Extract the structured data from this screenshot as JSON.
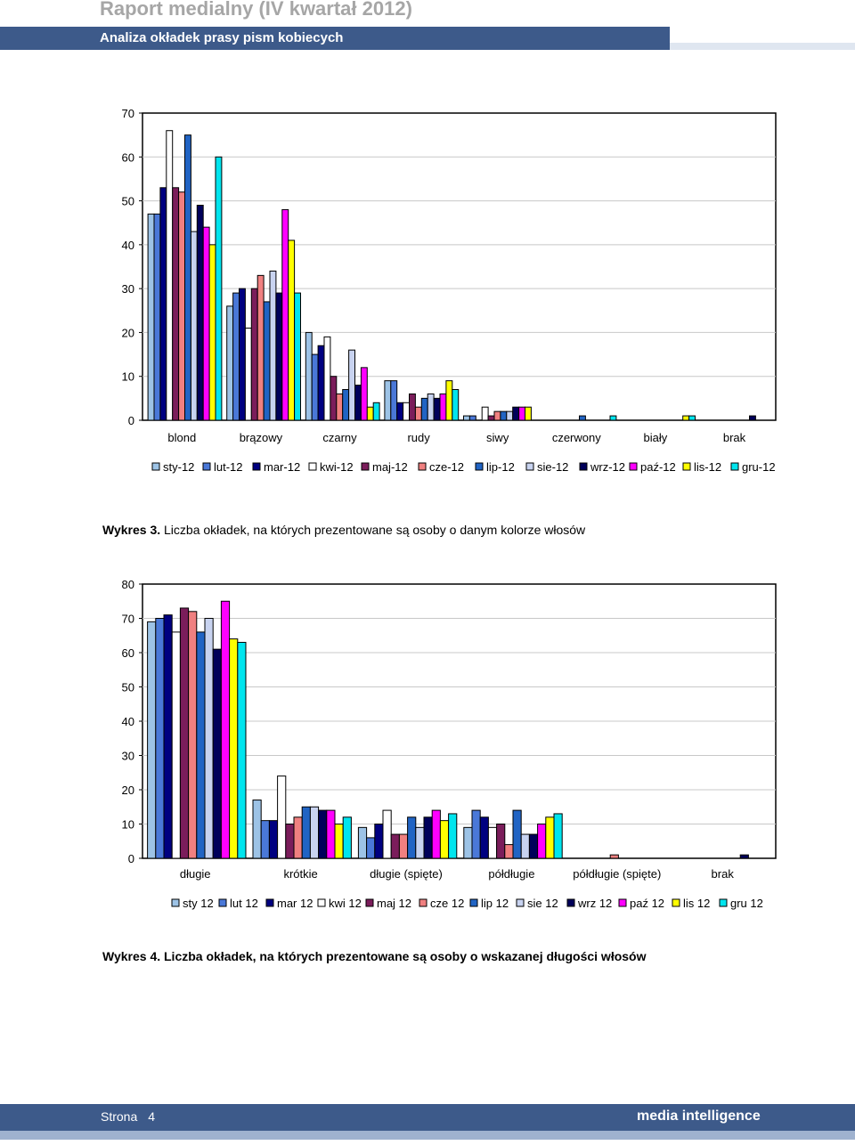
{
  "header": {
    "title": "Raport medialny (IV kwartał 2012)",
    "subtitle": "Analiza okładek prasy pism kobiecych"
  },
  "series_colors": [
    "#9dc3e6",
    "#4a78d8",
    "#000080",
    "#ffffff",
    "#7b1d5b",
    "#f08080",
    "#2164c4",
    "#c8d3f0",
    "#00005a",
    "#ff00ff",
    "#ffff00",
    "#00e5ee"
  ],
  "charts": [
    {
      "caption_bold": "Wykres 3.",
      "caption_text": " Liczba okładek, na których prezentowane są osoby o danym kolorze włosów",
      "chart_data": {
        "type": "bar",
        "categories": [
          "blond",
          "brązowy",
          "czarny",
          "rudy",
          "siwy",
          "czerwony",
          "biały",
          "brak"
        ],
        "ylim": [
          0,
          70
        ],
        "yticks": [
          "0",
          "10",
          "20",
          "30",
          "40",
          "50",
          "60",
          "70"
        ],
        "series": [
          {
            "name": "sty-12",
            "values": [
              47,
              26,
              20,
              9,
              1,
              0,
              0,
              0
            ]
          },
          {
            "name": "lut-12",
            "values": [
              47,
              29,
              15,
              9,
              1,
              0,
              0,
              0
            ]
          },
          {
            "name": "mar-12",
            "values": [
              53,
              30,
              17,
              4,
              0,
              0,
              0,
              0
            ]
          },
          {
            "name": "kwi-12",
            "values": [
              66,
              21,
              19,
              4,
              3,
              0,
              0,
              0
            ]
          },
          {
            "name": "maj-12",
            "values": [
              53,
              30,
              10,
              6,
              1,
              0,
              0,
              0
            ]
          },
          {
            "name": "cze-12",
            "values": [
              52,
              33,
              6,
              3,
              2,
              0,
              0,
              0
            ]
          },
          {
            "name": "lip-12",
            "values": [
              65,
              27,
              7,
              5,
              2,
              1,
              0,
              0
            ]
          },
          {
            "name": "sie-12",
            "values": [
              43,
              34,
              16,
              6,
              2,
              0,
              0,
              0
            ]
          },
          {
            "name": "wrz-12",
            "values": [
              49,
              29,
              8,
              5,
              3,
              0,
              0,
              1
            ]
          },
          {
            "name": "paź-12",
            "values": [
              44,
              48,
              12,
              6,
              3,
              0,
              0,
              0
            ]
          },
          {
            "name": "lis-12",
            "values": [
              40,
              41,
              3,
              9,
              3,
              0,
              1,
              0
            ]
          },
          {
            "name": "gru-12",
            "values": [
              60,
              29,
              4,
              7,
              0,
              1,
              1,
              0
            ]
          }
        ]
      }
    },
    {
      "caption_bold": "Wykres 4. Liczba okładek, na których prezentowane są osoby o wskazanej długości włosów",
      "caption_text": "",
      "chart_data": {
        "type": "bar",
        "categories": [
          "długie",
          "krótkie",
          "długie (spięte)",
          "półdługie",
          "półdługie (spięte)",
          "brak"
        ],
        "ylim": [
          0,
          80
        ],
        "yticks": [
          "0",
          "10",
          "20",
          "30",
          "40",
          "50",
          "60",
          "70",
          "80"
        ],
        "series": [
          {
            "name": "sty 12",
            "values": [
              69,
              17,
              9,
              9,
              0,
              0
            ]
          },
          {
            "name": "lut 12",
            "values": [
              70,
              11,
              6,
              14,
              0,
              0
            ]
          },
          {
            "name": "mar 12",
            "values": [
              71,
              11,
              10,
              12,
              0,
              0
            ]
          },
          {
            "name": "kwi 12",
            "values": [
              66,
              24,
              14,
              9,
              0,
              0
            ]
          },
          {
            "name": "maj 12",
            "values": [
              73,
              10,
              7,
              10,
              0,
              0
            ]
          },
          {
            "name": "cze 12",
            "values": [
              72,
              12,
              7,
              4,
              1,
              0
            ]
          },
          {
            "name": "lip 12",
            "values": [
              66,
              15,
              12,
              14,
              0,
              0
            ]
          },
          {
            "name": "sie 12",
            "values": [
              70,
              15,
              9,
              7,
              0,
              0
            ]
          },
          {
            "name": "wrz 12",
            "values": [
              61,
              14,
              12,
              7,
              0,
              1
            ]
          },
          {
            "name": "paź 12",
            "values": [
              75,
              14,
              14,
              10,
              0,
              0
            ]
          },
          {
            "name": "lis 12",
            "values": [
              64,
              10,
              11,
              12,
              0,
              0
            ]
          },
          {
            "name": "gru 12",
            "values": [
              63,
              12,
              13,
              13,
              0,
              0
            ]
          }
        ]
      }
    }
  ],
  "footer": {
    "page_label": "Strona",
    "page_number": "4",
    "brand": "media intelligence"
  }
}
